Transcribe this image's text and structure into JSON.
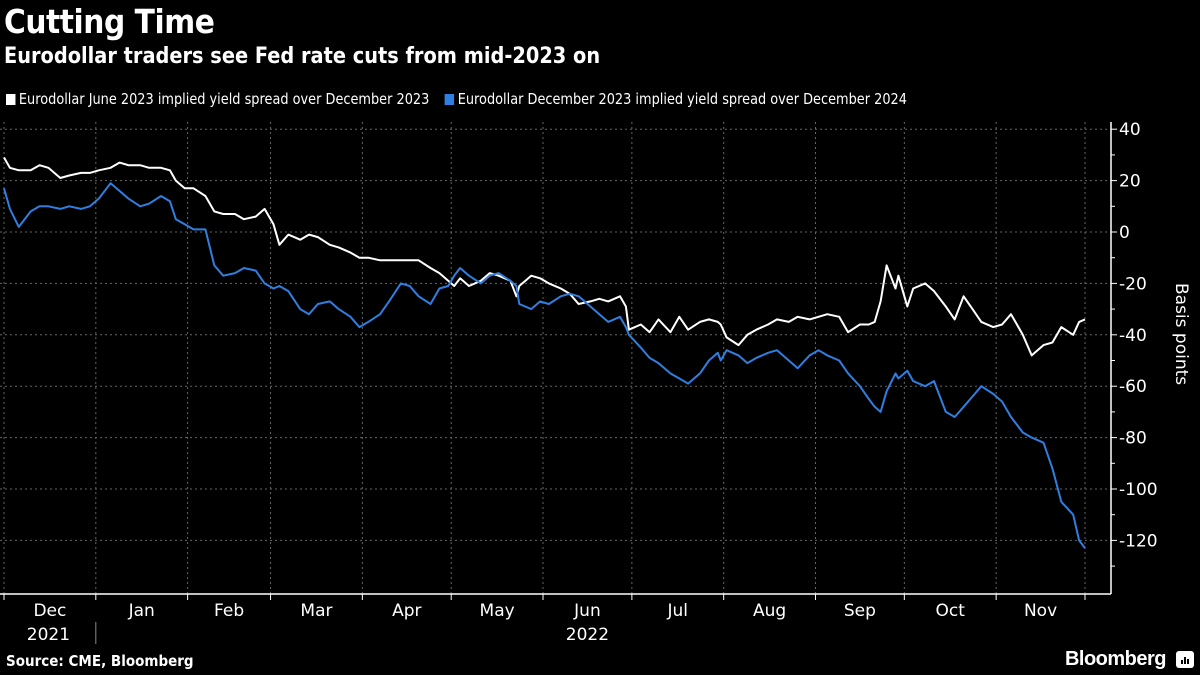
{
  "header": {
    "title": "Cutting Time",
    "subtitle": "Eurodollar traders see Fed rate cuts from mid-2023 on"
  },
  "footer": {
    "source": "Source: CME, Bloomberg",
    "brand": "Bloomberg",
    "brand_icon": "bloomberg-chart-icon"
  },
  "colors": {
    "background": "#000000",
    "series_white": "#ffffff",
    "series_blue": "#2f7fe0",
    "grid": "#666666"
  },
  "chart_data": {
    "type": "line",
    "title": "Cutting Time",
    "subtitle": "Eurodollar traders see Fed rate cuts from mid-2023 on",
    "xlabel": "",
    "ylabel": "Basis points",
    "y_axis_side": "right",
    "ylim": [
      -132,
      44
    ],
    "yticks": [
      40,
      20,
      0,
      -20,
      -40,
      -60,
      -80,
      -100,
      -120
    ],
    "x_domain_days": [
      0,
      365
    ],
    "x_domain_dates": [
      "2021-12-01",
      "2022-12-01"
    ],
    "xtick_labels": [
      "Dec",
      "Jan",
      "Feb",
      "Mar",
      "Apr",
      "May",
      "Jun",
      "Jul",
      "Aug",
      "Sep",
      "Oct",
      "Nov"
    ],
    "xtick_days": [
      0,
      31,
      62,
      90,
      121,
      151,
      182,
      212,
      243,
      274,
      304,
      335,
      365
    ],
    "year_labels": [
      {
        "label": "2021",
        "day": 15
      },
      {
        "label": "2022",
        "day": 197
      }
    ],
    "grid": true,
    "legend_position": "top-left",
    "x_unit": "days since 2021-12-01",
    "series": [
      {
        "name": "Eurodollar June 2023 implied yield spread over December 2023",
        "color": "#ffffff",
        "x": [
          0,
          2,
          5,
          9,
          12,
          15,
          19,
          22,
          26,
          29,
          32,
          36,
          39,
          42,
          46,
          49,
          53,
          56,
          58,
          61,
          64,
          68,
          71,
          74,
          78,
          81,
          85,
          88,
          91,
          93,
          96,
          100,
          103,
          106,
          110,
          113,
          117,
          120,
          123,
          127,
          130,
          134,
          137,
          140,
          144,
          147,
          150,
          152,
          154,
          157,
          161,
          164,
          167,
          171,
          173,
          174,
          178,
          181,
          184,
          188,
          191,
          194,
          198,
          201,
          204,
          208,
          210,
          211,
          215,
          218,
          221,
          225,
          228,
          231,
          235,
          238,
          241,
          242,
          244,
          248,
          251,
          254,
          258,
          261,
          265,
          268,
          272,
          275,
          278,
          282,
          285,
          289,
          292,
          294,
          296,
          298,
          301,
          302,
          305,
          307,
          311,
          314,
          318,
          321,
          324,
          327,
          330,
          334,
          337,
          340,
          344,
          347,
          351,
          354,
          357,
          361,
          363,
          365
        ],
        "values": [
          29,
          25,
          24,
          24,
          26,
          25,
          21,
          22,
          23,
          23,
          24,
          25,
          27,
          26,
          26,
          25,
          25,
          24,
          20,
          17,
          17,
          14,
          8,
          7,
          7,
          5,
          6,
          9,
          3,
          -5,
          -1,
          -3,
          -1,
          -2,
          -5,
          -6,
          -8,
          -10,
          -10,
          -11,
          -11,
          -11,
          -11,
          -11,
          -14,
          -16,
          -19,
          -21,
          -18,
          -21,
          -19,
          -16,
          -17,
          -19,
          -25,
          -21,
          -17,
          -18,
          -20,
          -22,
          -24,
          -28,
          -27,
          -26,
          -27,
          -25,
          -29,
          -38,
          -36,
          -39,
          -34,
          -39,
          -33,
          -38,
          -35,
          -34,
          -35,
          -36,
          -41,
          -44,
          -40,
          -38,
          -36,
          -34,
          -35,
          -33,
          -34,
          -33,
          -32,
          -33,
          -39,
          -36,
          -36,
          -35,
          -27,
          -13,
          -22,
          -17,
          -29,
          -22,
          -20,
          -23,
          -29,
          -34,
          -25,
          -30,
          -35,
          -37,
          -36,
          -32,
          -40,
          -48,
          -44,
          -43,
          -37,
          -40,
          -35,
          -34
        ]
      },
      {
        "name": "Eurodollar December 2023 implied yield spread over December 2024",
        "color": "#2f7fe0",
        "x": [
          0,
          2,
          5,
          9,
          12,
          15,
          19,
          22,
          26,
          29,
          32,
          36,
          39,
          42,
          46,
          49,
          53,
          56,
          58,
          61,
          64,
          68,
          71,
          74,
          78,
          81,
          85,
          88,
          91,
          93,
          96,
          100,
          103,
          106,
          110,
          113,
          117,
          120,
          123,
          127,
          130,
          134,
          137,
          140,
          144,
          147,
          150,
          152,
          154,
          157,
          161,
          164,
          167,
          171,
          173,
          174,
          178,
          181,
          184,
          188,
          191,
          194,
          198,
          201,
          204,
          208,
          210,
          211,
          215,
          218,
          221,
          225,
          228,
          231,
          235,
          238,
          241,
          242,
          244,
          248,
          251,
          254,
          258,
          261,
          265,
          268,
          272,
          275,
          278,
          282,
          285,
          289,
          292,
          294,
          296,
          298,
          301,
          302,
          305,
          307,
          311,
          314,
          318,
          321,
          324,
          327,
          330,
          334,
          337,
          340,
          344,
          347,
          351,
          354,
          357,
          361,
          363,
          365
        ],
        "values": [
          17,
          9,
          2,
          8,
          10,
          10,
          9,
          10,
          9,
          10,
          13,
          19,
          16,
          13,
          10,
          11,
          14,
          12,
          5,
          3,
          1,
          1,
          -13,
          -17,
          -16,
          -14,
          -15,
          -20,
          -22,
          -21,
          -23,
          -30,
          -32,
          -28,
          -27,
          -30,
          -33,
          -37,
          -35,
          -32,
          -27,
          -20,
          -21,
          -25,
          -28,
          -22,
          -21,
          -17,
          -14,
          -17,
          -20,
          -17,
          -16,
          -19,
          -21,
          -28,
          -30,
          -27,
          -28,
          -25,
          -24,
          -25,
          -29,
          -32,
          -35,
          -33,
          -37,
          -40,
          -45,
          -49,
          -51,
          -55,
          -57,
          -59,
          -55,
          -50,
          -47,
          -50,
          -46,
          -48,
          -51,
          -49,
          -47,
          -46,
          -50,
          -53,
          -48,
          -46,
          -48,
          -50,
          -55,
          -60,
          -65,
          -68,
          -70,
          -62,
          -55,
          -57,
          -54,
          -58,
          -60,
          -58,
          -70,
          -72,
          -68,
          -64,
          -60,
          -63,
          -66,
          -72,
          -78,
          -80,
          -82,
          -92,
          -105,
          -110,
          -120,
          -123
        ]
      }
    ]
  }
}
